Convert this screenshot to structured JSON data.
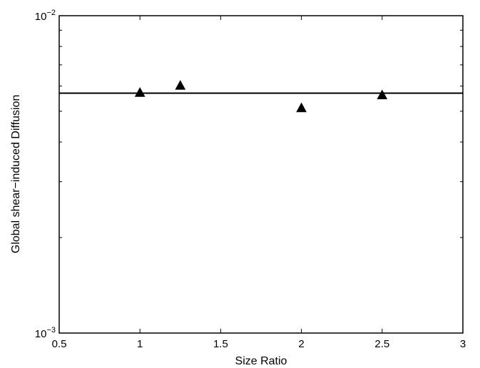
{
  "chart_data": {
    "type": "scatter",
    "title": "",
    "xlabel": "Size Ratio",
    "ylabel": "Global shear−induced Diffusion",
    "xlim": [
      0.5,
      3
    ],
    "ylim": [
      0.001,
      0.01
    ],
    "yscale": "log",
    "grid": false,
    "x_ticks": [
      "0.5",
      "1",
      "1.5",
      "2",
      "2.5",
      "3"
    ],
    "y_ticks": [
      {
        "base": "10",
        "exp": "−3"
      },
      {
        "base": "10",
        "exp": "−2"
      }
    ],
    "series": [
      {
        "marker": "triangle",
        "color": "#000000",
        "x": [
          1,
          1.25,
          2,
          2.5
        ],
        "y": [
          0.0057,
          0.006,
          0.0051,
          0.0056
        ]
      }
    ],
    "reference_line": {
      "y": 0.0057,
      "color": "#000000"
    }
  }
}
